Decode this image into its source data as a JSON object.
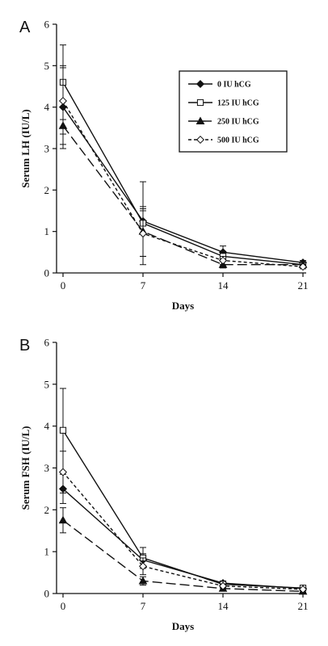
{
  "chart_data": [
    {
      "type": "line",
      "panel_label": "A",
      "xlabel": "Days",
      "ylabel": "Serum LH (IU/L)",
      "x": [
        0,
        7,
        14,
        21
      ],
      "xticks": [
        "0",
        "7",
        "14",
        "21"
      ],
      "yticks": [
        "0",
        "1",
        "2",
        "3",
        "4",
        "5",
        "6"
      ],
      "ylim": [
        0,
        6
      ],
      "grid": false,
      "legend": "inside-top-right-boxed",
      "series": [
        {
          "name": "0 IU hCG",
          "values": [
            4.0,
            1.25,
            0.5,
            0.25
          ],
          "err": [
            1.0,
            0.3,
            0.15,
            0.05
          ],
          "marker": "diamond-filled",
          "dash": "solid"
        },
        {
          "name": "125 IU hCG",
          "values": [
            4.6,
            1.2,
            0.4,
            0.2
          ],
          "err": [
            0.9,
            1.0,
            0.12,
            0.05
          ],
          "marker": "square-open",
          "dash": "solid"
        },
        {
          "name": "250 IU hCG",
          "values": [
            3.55,
            1.0,
            0.2,
            0.2
          ],
          "err": [
            0.45,
            0.6,
            0.08,
            0.05
          ],
          "marker": "triangle-filled",
          "dash": "long-dash"
        },
        {
          "name": "500 IU hCG",
          "values": [
            4.15,
            0.95,
            0.3,
            0.15
          ],
          "err": [
            0.8,
            0.55,
            0.1,
            0.05
          ],
          "marker": "diamond-open",
          "dash": "short-dash"
        }
      ]
    },
    {
      "type": "line",
      "panel_label": "B",
      "xlabel": "Days",
      "ylabel": "Serum FSH (IU/L)",
      "x": [
        0,
        7,
        14,
        21
      ],
      "xticks": [
        "0",
        "7",
        "14",
        "21"
      ],
      "yticks": [
        "0",
        "1",
        "2",
        "3",
        "4",
        "5",
        "6"
      ],
      "ylim": [
        0,
        6
      ],
      "grid": false,
      "legend": "none",
      "series": [
        {
          "name": "0 IU hCG",
          "values": [
            2.5,
            0.8,
            0.25,
            0.12
          ],
          "err": [
            0.35,
            0.15,
            0.05,
            0.03
          ],
          "marker": "diamond-filled",
          "dash": "solid"
        },
        {
          "name": "125 IU hCG",
          "values": [
            3.9,
            0.85,
            0.22,
            0.13
          ],
          "err": [
            1.0,
            0.25,
            0.05,
            0.03
          ],
          "marker": "square-open",
          "dash": "solid"
        },
        {
          "name": "250 IU hCG",
          "values": [
            1.75,
            0.3,
            0.12,
            0.05
          ],
          "err": [
            0.3,
            0.1,
            0.04,
            0.02
          ],
          "marker": "triangle-filled",
          "dash": "long-dash"
        },
        {
          "name": "500 IU hCG",
          "values": [
            2.9,
            0.65,
            0.18,
            0.1
          ],
          "err": [
            0.5,
            0.2,
            0.05,
            0.03
          ],
          "marker": "diamond-open",
          "dash": "short-dash"
        }
      ]
    }
  ]
}
